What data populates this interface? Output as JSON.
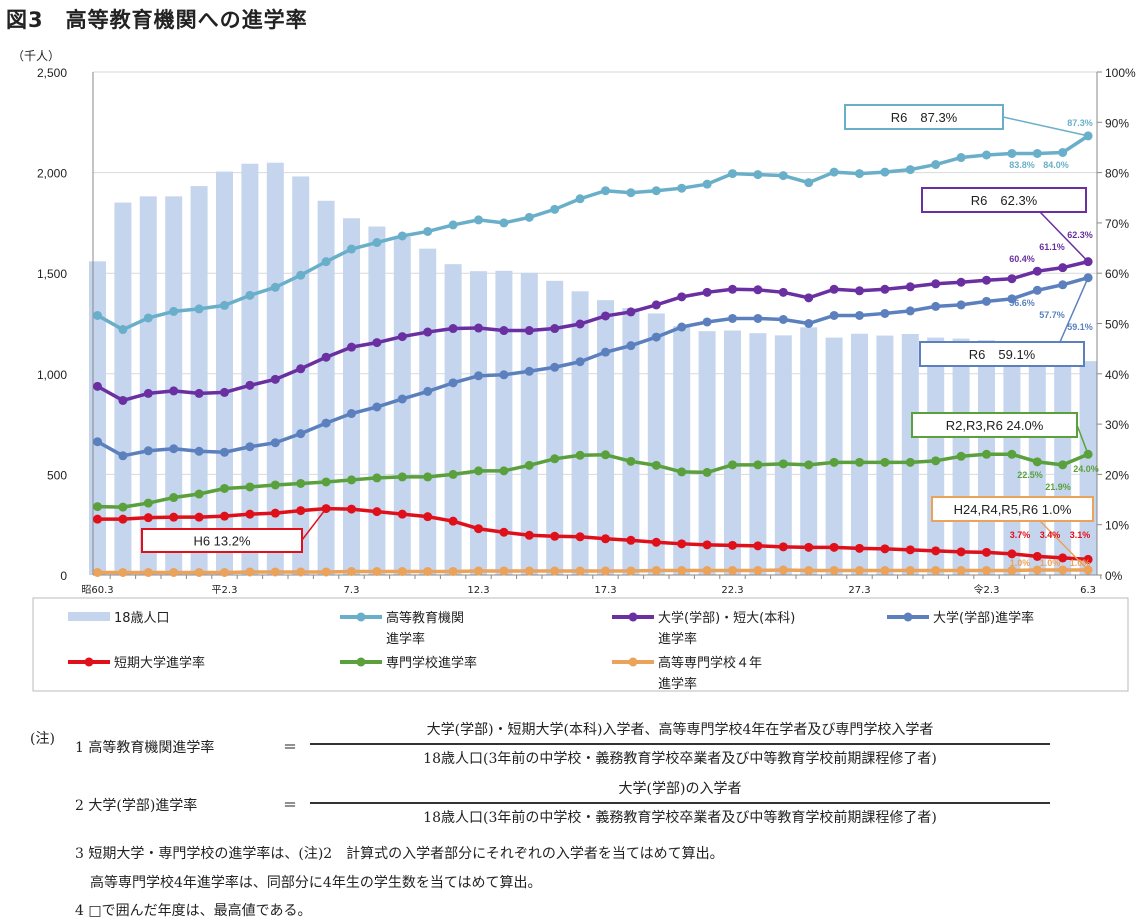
{
  "title": "図3　高等教育機関への進学率",
  "chart_data": {
    "type": "bar+line",
    "y_left_unit": "（千人）",
    "y_left_ticks": [
      "0",
      "500",
      "1,000",
      "1,500",
      "2,000",
      "2,500"
    ],
    "ylim_left": [
      0,
      2500
    ],
    "y_right_ticks": [
      "0%",
      "10%",
      "20%",
      "30%",
      "40%",
      "50%",
      "60%",
      "70%",
      "80%",
      "90%",
      "100%"
    ],
    "ylim_right": [
      0,
      100
    ],
    "grid": true,
    "x_years": [
      1985,
      1986,
      1987,
      1988,
      1989,
      1990,
      1991,
      1992,
      1993,
      1994,
      1995,
      1996,
      1997,
      1998,
      1999,
      2000,
      2001,
      2002,
      2003,
      2004,
      2005,
      2006,
      2007,
      2008,
      2009,
      2010,
      2011,
      2012,
      2013,
      2014,
      2015,
      2016,
      2017,
      2018,
      2019,
      2020,
      2021,
      2022,
      2023,
      2024
    ],
    "x_tick_labels": [
      {
        "year": 1985,
        "label": "昭60.3"
      },
      {
        "year": 1990,
        "label": "平2.3"
      },
      {
        "year": 1995,
        "label": "7.3"
      },
      {
        "year": 2000,
        "label": "12.3"
      },
      {
        "year": 2005,
        "label": "17.3"
      },
      {
        "year": 2010,
        "label": "22.3"
      },
      {
        "year": 2015,
        "label": "27.3"
      },
      {
        "year": 2020,
        "label": "令2.3"
      },
      {
        "year": 2024,
        "label": "6.3"
      }
    ],
    "bar_series": {
      "name": "18歳人口",
      "color": "#c5d5ee",
      "axis": "left",
      "values": [
        1559,
        1851,
        1882,
        1882,
        1933,
        2005,
        2044,
        2049,
        1981,
        1860,
        1773,
        1732,
        1680,
        1622,
        1545,
        1510,
        1512,
        1502,
        1462,
        1410,
        1366,
        1326,
        1300,
        1237,
        1212,
        1215,
        1202,
        1191,
        1231,
        1180,
        1199,
        1190,
        1198,
        1180,
        1175,
        1167,
        1141,
        1122,
        1100,
        1063
      ]
    },
    "series": [
      {
        "name": "高等教育機関\n進学率",
        "legend_lines": [
          "高等教育機関",
          "進学率"
        ],
        "color": "#6aafc9",
        "axis": "right",
        "values": [
          51.6,
          48.8,
          51.1,
          52.4,
          52.9,
          53.6,
          55.6,
          57.2,
          59.6,
          62.3,
          64.8,
          66.1,
          67.4,
          68.3,
          69.6,
          70.6,
          70.0,
          71.1,
          72.7,
          74.8,
          76.4,
          76.0,
          76.4,
          76.9,
          77.7,
          79.8,
          79.6,
          79.4,
          78.0,
          80.1,
          79.8,
          80.1,
          80.6,
          81.6,
          83.0,
          83.5,
          83.8,
          83.8,
          84.0,
          87.3
        ]
      },
      {
        "name": "大学(学部)・短大(本科)\n進学率",
        "legend_lines": [
          "大学(学部)・短大(本科)",
          "進学率"
        ],
        "color": "#6a2fa0",
        "axis": "right",
        "values": [
          37.5,
          34.7,
          36.1,
          36.6,
          36.1,
          36.3,
          37.7,
          38.9,
          41.0,
          43.3,
          45.3,
          46.2,
          47.4,
          48.3,
          49.0,
          49.1,
          48.6,
          48.6,
          49.0,
          49.9,
          51.5,
          52.3,
          53.7,
          55.3,
          56.2,
          56.8,
          56.7,
          56.2,
          55.1,
          56.8,
          56.5,
          56.8,
          57.3,
          57.9,
          58.2,
          58.6,
          58.9,
          60.4,
          61.1,
          62.3
        ]
      },
      {
        "name": "大学(学部)進学率",
        "legend_lines": [
          "大学(学部)進学率"
        ],
        "color": "#5b80bd",
        "axis": "right",
        "values": [
          26.5,
          23.7,
          24.7,
          25.1,
          24.6,
          24.4,
          25.5,
          26.3,
          28.1,
          30.2,
          32.1,
          33.4,
          35.0,
          36.5,
          38.2,
          39.6,
          39.8,
          40.5,
          41.3,
          42.4,
          44.3,
          45.6,
          47.3,
          49.3,
          50.3,
          51.0,
          51.0,
          50.8,
          50.0,
          51.6,
          51.6,
          52.0,
          52.5,
          53.4,
          53.7,
          54.4,
          54.9,
          56.6,
          57.7,
          59.1
        ]
      },
      {
        "name": "短期大学進学率",
        "legend_lines": [
          "短期大学進学率"
        ],
        "color": "#e0101a",
        "axis": "right",
        "values": [
          11.1,
          11.1,
          11.4,
          11.5,
          11.5,
          11.7,
          12.1,
          12.3,
          12.8,
          13.2,
          13.1,
          12.6,
          12.1,
          11.6,
          10.7,
          9.2,
          8.5,
          7.9,
          7.7,
          7.6,
          7.2,
          6.9,
          6.5,
          6.2,
          6.0,
          5.9,
          5.8,
          5.6,
          5.5,
          5.5,
          5.3,
          5.2,
          5.0,
          4.8,
          4.6,
          4.5,
          4.2,
          3.7,
          3.4,
          3.1
        ]
      },
      {
        "name": "専門学校進学率",
        "legend_lines": [
          "専門学校進学率"
        ],
        "color": "#5aa03c",
        "axis": "right",
        "values": [
          13.6,
          13.5,
          14.3,
          15.4,
          16.1,
          17.2,
          17.5,
          17.9,
          18.2,
          18.5,
          18.9,
          19.3,
          19.5,
          19.5,
          20.0,
          20.7,
          20.7,
          21.8,
          23.1,
          23.8,
          23.9,
          22.6,
          21.8,
          20.5,
          20.4,
          21.9,
          21.9,
          22.1,
          21.9,
          22.4,
          22.4,
          22.4,
          22.4,
          22.7,
          23.6,
          24.0,
          24.0,
          22.5,
          21.9,
          24.0
        ]
      },
      {
        "name": "高等専門学校４年\n進学率",
        "legend_lines": [
          "高等専門学校４年",
          "進学率"
        ],
        "color": "#eba25a",
        "axis": "right",
        "values": [
          0.5,
          0.5,
          0.5,
          0.5,
          0.5,
          0.5,
          0.6,
          0.6,
          0.6,
          0.6,
          0.7,
          0.7,
          0.7,
          0.7,
          0.7,
          0.8,
          0.8,
          0.8,
          0.8,
          0.8,
          0.8,
          0.8,
          0.9,
          0.9,
          0.9,
          0.9,
          0.9,
          1.0,
          0.9,
          0.9,
          0.9,
          0.9,
          0.9,
          0.9,
          0.9,
          0.9,
          0.9,
          1.0,
          1.0,
          1.0
        ]
      }
    ],
    "callouts": [
      {
        "text": "R6　87.3%",
        "series": 0,
        "year": 2024,
        "color": "#6aafc9"
      },
      {
        "text": "R6　62.3%",
        "series": 1,
        "year": 2024,
        "color": "#6a2fa0"
      },
      {
        "text": "R6　59.1%",
        "series": 2,
        "year": 2024,
        "color": "#5b80bd"
      },
      {
        "text": "R2,R3,R6 24.0%",
        "series": 4,
        "year": 2024,
        "color": "#5aa03c"
      },
      {
        "text": "H24,R4,R5,R6 1.0%",
        "series": 5,
        "year": 2024,
        "color": "#eba25a"
      },
      {
        "text": "H6 13.2%",
        "series": 3,
        "year": 1994,
        "color": "#e0101a"
      }
    ],
    "data_labels": [
      {
        "series": 0,
        "year": 2024,
        "text": "87.3%"
      },
      {
        "series": 0,
        "year": 2022,
        "text": "83.8%"
      },
      {
        "series": 0,
        "year": 2023,
        "text": "84.0%"
      },
      {
        "series": 1,
        "year": 2022,
        "text": "60.4%"
      },
      {
        "series": 1,
        "year": 2023,
        "text": "61.1%"
      },
      {
        "series": 1,
        "year": 2024,
        "text": "62.3%"
      },
      {
        "series": 2,
        "year": 2022,
        "text": "56.6%"
      },
      {
        "series": 2,
        "year": 2023,
        "text": "57.7%"
      },
      {
        "series": 2,
        "year": 2024,
        "text": "59.1%"
      },
      {
        "series": 4,
        "year": 2022,
        "text": "22.5%"
      },
      {
        "series": 4,
        "year": 2023,
        "text": "21.9%"
      },
      {
        "series": 4,
        "year": 2024,
        "text": "24.0%"
      },
      {
        "series": 3,
        "year": 2022,
        "text": "3.7%"
      },
      {
        "series": 3,
        "year": 2023,
        "text": "3.4%"
      },
      {
        "series": 3,
        "year": 2024,
        "text": "3.1%"
      },
      {
        "series": 5,
        "year": 2022,
        "text": "1.0%"
      },
      {
        "series": 5,
        "year": 2023,
        "text": "1.0%"
      },
      {
        "series": 5,
        "year": 2024,
        "text": "1.0%"
      }
    ]
  },
  "notes": {
    "label": "(注)",
    "n1_label": "1 高等教育機関進学率",
    "n1_eq": "＝",
    "n1_num": "大学(学部)・短期大学(本科)入学者、高等専門学校4年在学者及び専門学校入学者",
    "n1_den": "18歳人口(3年前の中学校・義務教育学校卒業者及び中等教育学校前期課程修了者)",
    "n2_label": "2 大学(学部)進学率",
    "n2_eq": "＝",
    "n2_num": "大学(学部)の入学者",
    "n2_den": "18歳人口(3年前の中学校・義務教育学校卒業者及び中等教育学校前期課程修了者)",
    "n3": "3 短期大学・専門学校の進学率は、(注)2　計算式の入学者部分にそれぞれの入学者を当てはめて算出。",
    "n3b": "高等専門学校4年進学率は、同部分に4年生の学生数を当てはめて算出。",
    "n4": "4 □で囲んだ年度は、最高値である。"
  }
}
